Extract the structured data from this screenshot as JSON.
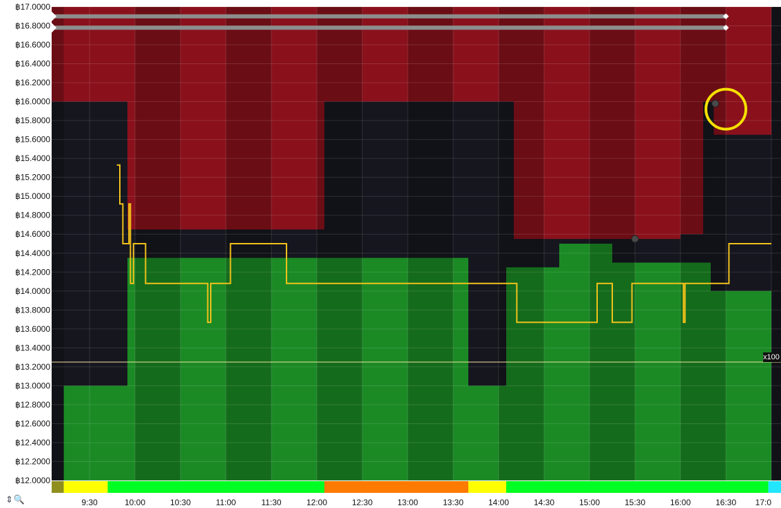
{
  "chart_data": {
    "type": "area",
    "y_axis": {
      "ylim": [
        12.0,
        17.0
      ],
      "tick_labels": [
        "฿17.0000",
        "฿16.8000",
        "฿16.6000",
        "฿16.4000",
        "฿16.2000",
        "฿16.0000",
        "฿15.8000",
        "฿15.6000",
        "฿15.4000",
        "฿15.2000",
        "฿15.0000",
        "฿14.8000",
        "฿14.6000",
        "฿14.4000",
        "฿14.2000",
        "฿14.0000",
        "฿13.8000",
        "฿13.6000",
        "฿13.4000",
        "฿13.2000",
        "฿13.0000",
        "฿12.8000",
        "฿12.6000",
        "฿12.4000",
        "฿12.2000",
        "฿12.0000"
      ]
    },
    "x_axis": {
      "xlim": [
        "09:05",
        "17:00"
      ],
      "tick_labels": [
        "9:30",
        "10:00",
        "10:30",
        "11:00",
        "11:30",
        "12:00",
        "12:30",
        "13:00",
        "13:30",
        "14:00",
        "14:30",
        "15:00",
        "15:30",
        "16:00",
        "16:30",
        "17:0"
      ],
      "tick_times": [
        "09:30",
        "10:00",
        "10:30",
        "11:00",
        "11:30",
        "12:00",
        "12:30",
        "13:00",
        "13:30",
        "14:00",
        "14:30",
        "15:00",
        "15:30",
        "16:00",
        "16:30",
        "17:00"
      ]
    },
    "upper_band": {
      "name": "",
      "color": "#8a111c",
      "points": [
        [
          "09:05",
          16.0
        ],
        [
          "09:55",
          16.0
        ],
        [
          "09:55",
          14.65
        ],
        [
          "12:05",
          14.65
        ],
        [
          "12:05",
          16.0
        ],
        [
          "14:10",
          16.0
        ],
        [
          "14:10",
          14.55
        ],
        [
          "16:00",
          14.55
        ],
        [
          "16:00",
          14.6
        ],
        [
          "16:15",
          14.6
        ],
        [
          "16:15",
          16.0
        ],
        [
          "16:22",
          16.0
        ],
        [
          "16:22",
          15.65
        ],
        [
          "17:00",
          15.65
        ]
      ]
    },
    "lower_band": {
      "name": "",
      "color": "#1b8a25",
      "points": [
        [
          "09:05",
          12.0
        ],
        [
          "09:13",
          12.0
        ],
        [
          "09:13",
          13.0
        ],
        [
          "09:55",
          13.0
        ],
        [
          "09:55",
          14.35
        ],
        [
          "13:40",
          14.35
        ],
        [
          "13:40",
          13.0
        ],
        [
          "14:05",
          13.0
        ],
        [
          "14:05",
          14.25
        ],
        [
          "14:40",
          14.25
        ],
        [
          "14:40",
          14.5
        ],
        [
          "15:15",
          14.5
        ],
        [
          "15:15",
          14.3
        ],
        [
          "16:20",
          14.3
        ],
        [
          "16:20",
          14.0
        ],
        [
          "17:00",
          14.0
        ]
      ]
    },
    "price_line": {
      "name": "",
      "color": "#f2c21b",
      "points": [
        [
          "09:48",
          15.33
        ],
        [
          "09:50",
          15.33
        ],
        [
          "09:50",
          14.92
        ],
        [
          "09:52",
          14.92
        ],
        [
          "09:52",
          14.5
        ],
        [
          "09:56",
          14.5
        ],
        [
          "09:56",
          14.92
        ],
        [
          "09:57",
          14.92
        ],
        [
          "09:57",
          14.08
        ],
        [
          "09:59",
          14.08
        ],
        [
          "09:59",
          14.5
        ],
        [
          "10:07",
          14.5
        ],
        [
          "10:07",
          14.08
        ],
        [
          "10:48",
          14.08
        ],
        [
          "10:48",
          13.67
        ],
        [
          "10:50",
          13.67
        ],
        [
          "10:50",
          14.08
        ],
        [
          "11:03",
          14.08
        ],
        [
          "11:03",
          14.5
        ],
        [
          "11:40",
          14.5
        ],
        [
          "11:40",
          14.08
        ],
        [
          "14:12",
          14.08
        ],
        [
          "14:12",
          13.67
        ],
        [
          "15:05",
          13.67
        ],
        [
          "15:05",
          14.08
        ],
        [
          "15:15",
          14.08
        ],
        [
          "15:15",
          13.67
        ],
        [
          "15:28",
          13.67
        ],
        [
          "15:28",
          14.08
        ],
        [
          "16:02",
          14.08
        ],
        [
          "16:02",
          13.67
        ],
        [
          "16:03",
          13.67
        ],
        [
          "16:03",
          14.08
        ],
        [
          "16:32",
          14.08
        ],
        [
          "16:32",
          14.5
        ],
        [
          "17:00",
          14.5
        ]
      ]
    },
    "reference_line": {
      "value": 13.25,
      "color": "#f5e6a0",
      "label": "x100"
    },
    "range_sliders": [
      {
        "name": "",
        "value": 16.9,
        "from": "09:05",
        "to": "16:30"
      },
      {
        "name": "",
        "value": 16.78,
        "from": "09:05",
        "to": "16:30"
      }
    ],
    "markers": [
      {
        "type": "dot",
        "time": "16:23",
        "value": 15.98,
        "color": "#4a4a4a"
      },
      {
        "type": "dot",
        "time": "15:30",
        "value": 14.55,
        "color": "#4a4a4a"
      },
      {
        "type": "circle",
        "time": "16:30",
        "value": 15.92,
        "color": "#f5e000"
      }
    ],
    "session_bar": {
      "segments": [
        {
          "from": "09:05",
          "to": "09:13",
          "color": "#8f8f1f"
        },
        {
          "from": "09:13",
          "to": "09:42",
          "color": "#ffff00"
        },
        {
          "from": "09:42",
          "to": "12:05",
          "color": "#00ff22"
        },
        {
          "from": "12:05",
          "to": "13:40",
          "color": "#ff7a00"
        },
        {
          "from": "13:40",
          "to": "14:05",
          "color": "#ffff00"
        },
        {
          "from": "14:05",
          "to": "16:58",
          "color": "#00ff22"
        },
        {
          "from": "16:58",
          "to": "17:08",
          "color": "#22e5ff"
        },
        {
          "from": "17:08",
          "to": "17:15",
          "color": "#404040"
        }
      ]
    },
    "grid": true,
    "colors": {
      "background": "#16161f",
      "shade": "rgba(0,0,0,0.22)",
      "grid": "rgba(255,255,255,0.12)"
    }
  },
  "controls": {
    "zoom_arrows": "⇕",
    "zoom_icon": "🔍"
  }
}
